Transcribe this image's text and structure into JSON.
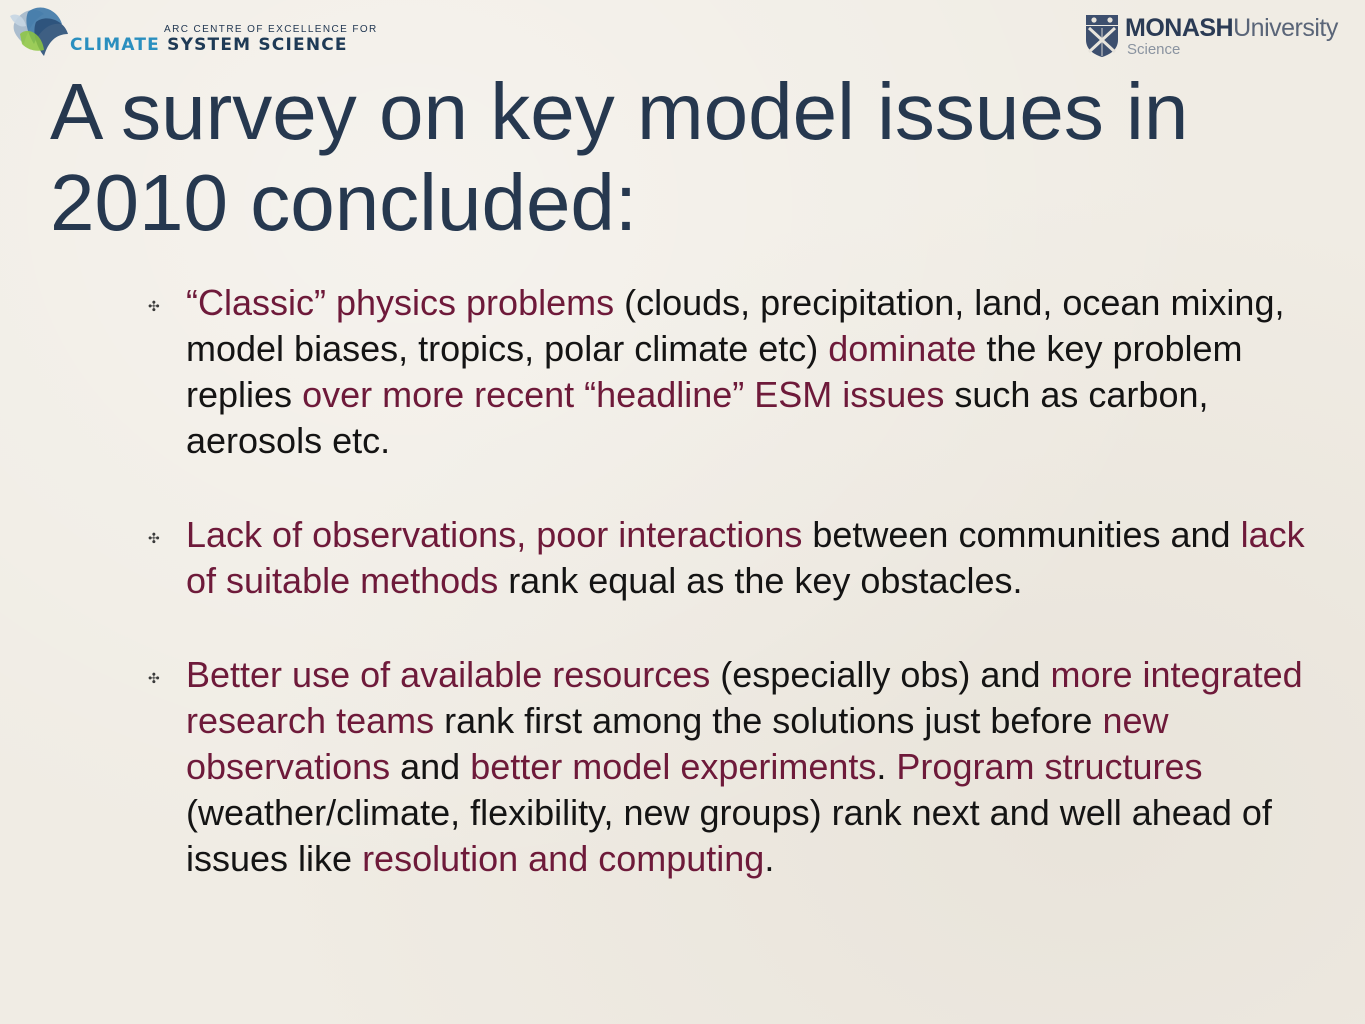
{
  "logos": {
    "ccss_small": "ARC CENTRE OF EXCELLENCE FOR",
    "ccss_climate": "CLIMATE",
    "ccss_rest": "SYSTEM SCIENCE",
    "monash_bold": "MONASH",
    "monash_rest": "University",
    "monash_sub": "Science"
  },
  "slide": {
    "title_line1": "A survey on key model issues in",
    "title_line2": "2010 concluded:",
    "bullet_glyph": "✣",
    "colors": {
      "title": "#26384f",
      "highlight": "#6e1a3a",
      "text": "#141414",
      "background": "#f0ece4"
    },
    "bullets": [
      {
        "segments": [
          {
            "text": "“Classic” physics problems",
            "hl": true
          },
          {
            "text": " (clouds, precipitation, land, ocean mixing, model biases, tropics, polar climate etc) ",
            "hl": false
          },
          {
            "text": "dominate",
            "hl": true
          },
          {
            "text": " the key problem replies ",
            "hl": false
          },
          {
            "text": "over more recent “headline” ESM issues",
            "hl": true
          },
          {
            "text": " such as carbon, aerosols etc.",
            "hl": false
          }
        ]
      },
      {
        "segments": [
          {
            "text": "Lack of observations, poor interactions",
            "hl": true
          },
          {
            "text": " between communities and ",
            "hl": false
          },
          {
            "text": "lack of suitable methods",
            "hl": true
          },
          {
            "text": " rank equal as the key obstacles.",
            "hl": false
          }
        ]
      },
      {
        "segments": [
          {
            "text": "Better use of available resources",
            "hl": true
          },
          {
            "text": " (especially obs) and ",
            "hl": false
          },
          {
            "text": "more integrated research teams",
            "hl": true
          },
          {
            "text": " rank first among the solutions just before ",
            "hl": false
          },
          {
            "text": "new observations",
            "hl": true
          },
          {
            "text": " and ",
            "hl": false
          },
          {
            "text": "better model experiments",
            "hl": true
          },
          {
            "text": ". ",
            "hl": false
          },
          {
            "text": "Program structures",
            "hl": true
          },
          {
            "text": " (weather/climate, flexibility, new groups) rank next and well ahead of issues like ",
            "hl": false
          },
          {
            "text": "resolution and computing",
            "hl": true
          },
          {
            "text": ".",
            "hl": false
          }
        ]
      }
    ]
  }
}
